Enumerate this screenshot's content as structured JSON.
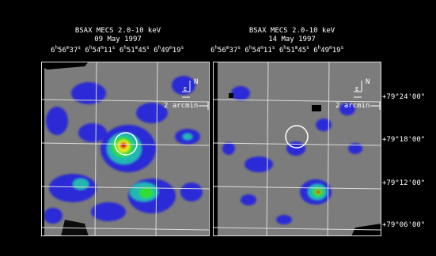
{
  "left_panel": {
    "title": "BSAX MECS 2.0-10 keV",
    "date": "09 May 1997",
    "ra_ticks": [
      {
        "h": "6",
        "m": "56",
        "s": "37"
      },
      {
        "h": "6",
        "m": "54",
        "s": "11"
      },
      {
        "h": "6",
        "m": "51",
        "s": "45"
      },
      {
        "h": "6",
        "m": "49",
        "s": "19"
      }
    ],
    "north_label": "N",
    "east_label": "E",
    "scale_label": "2 arcmin"
  },
  "right_panel": {
    "title": "BSAX MECS 2.0-10 keV",
    "date": "14 May 1997",
    "ra_ticks": [
      {
        "h": "6",
        "m": "56",
        "s": "37"
      },
      {
        "h": "6",
        "m": "54",
        "s": "11"
      },
      {
        "h": "6",
        "m": "51",
        "s": "45"
      },
      {
        "h": "6",
        "m": "49",
        "s": "19"
      }
    ],
    "north_label": "N",
    "east_label": "E",
    "scale_label": "2 arcmin"
  },
  "dec_labels": [
    "+79°24'00\"",
    "+79°18'00\"",
    "+79°12'00\"",
    "+79°06'00\""
  ],
  "colors": {
    "background": "#7c7c7c",
    "low": "#2a2ad6",
    "mid": "#22b8b0",
    "green": "#33dd33",
    "yellow": "#e8e820",
    "red": "#e01010",
    "grid": "#dddddd"
  }
}
